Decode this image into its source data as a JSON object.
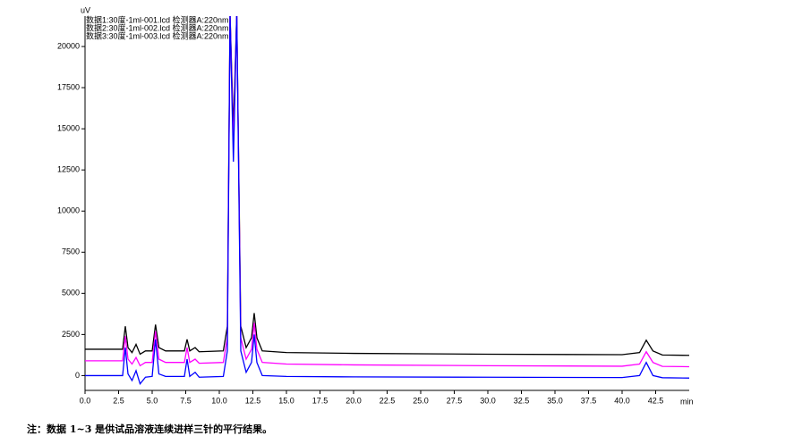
{
  "chart_data": {
    "type": "line",
    "y_label": "uV",
    "x_label": "min",
    "note": "注：数据 1~3 是供试品溶液连续进样三针的平行结果。",
    "x": [
      0,
      2.8,
      3.0,
      3.2,
      3.5,
      3.8,
      4.1,
      4.5,
      5.0,
      5.25,
      5.5,
      6.0,
      7.4,
      7.6,
      7.8,
      8.2,
      8.5,
      10.3,
      10.6,
      10.8,
      11.05,
      11.3,
      11.6,
      12.0,
      12.4,
      12.6,
      12.8,
      13.2,
      15,
      20,
      30,
      40,
      41.3,
      41.8,
      42.3,
      43,
      45
    ],
    "series": [
      {
        "name": "数据1:30度-1ml-001.lcd 检测器A:220nm",
        "color": "#000000",
        "values": [
          1600,
          1600,
          3000,
          1700,
          1400,
          1900,
          1300,
          1500,
          1500,
          3100,
          1700,
          1500,
          1500,
          2200,
          1500,
          1700,
          1450,
          1500,
          3000,
          22000,
          15000,
          22000,
          3000,
          1700,
          2300,
          3800,
          2300,
          1500,
          1400,
          1350,
          1300,
          1270,
          1400,
          2150,
          1500,
          1250,
          1230
        ]
      },
      {
        "name": "数据2:30度-1ml-002.lcd 检测器A:220nm",
        "color": "#ff00ff",
        "values": [
          900,
          900,
          2400,
          1000,
          700,
          1100,
          600,
          800,
          800,
          2700,
          1000,
          800,
          800,
          1700,
          800,
          1000,
          750,
          800,
          2300,
          22000,
          14000,
          22000,
          2300,
          1000,
          1600,
          3200,
          1600,
          800,
          700,
          650,
          600,
          570,
          700,
          1450,
          800,
          560,
          540
        ]
      },
      {
        "name": "数据3:30度-1ml-003.lcd 检测器A:220nm",
        "color": "#0000ff",
        "values": [
          0,
          0,
          1700,
          100,
          -300,
          300,
          -500,
          -100,
          -50,
          2200,
          100,
          -50,
          -50,
          1000,
          -50,
          200,
          -100,
          -50,
          1500,
          22000,
          13000,
          22000,
          1500,
          200,
          800,
          2500,
          800,
          0,
          -50,
          -80,
          -100,
          -120,
          0,
          800,
          0,
          -130,
          -150
        ]
      }
    ],
    "xlim": [
      0,
      45
    ],
    "ylim": [
      -900,
      21850
    ],
    "xticks": [
      {
        "value": 0,
        "label": "0.0"
      },
      {
        "value": 2.5,
        "label": "2.5"
      },
      {
        "value": 5,
        "label": "5.0"
      },
      {
        "value": 7.5,
        "label": "7.5"
      },
      {
        "value": 10,
        "label": "10.0"
      },
      {
        "value": 12.5,
        "label": "12.5"
      },
      {
        "value": 15,
        "label": "15.0"
      },
      {
        "value": 17.5,
        "label": "17.5"
      },
      {
        "value": 20,
        "label": "20.0"
      },
      {
        "value": 22.5,
        "label": "22.5"
      },
      {
        "value": 25,
        "label": "25.0"
      },
      {
        "value": 27.5,
        "label": "27.5"
      },
      {
        "value": 30,
        "label": "30.0"
      },
      {
        "value": 32.5,
        "label": "32.5"
      },
      {
        "value": 35,
        "label": "35.0"
      },
      {
        "value": 37.5,
        "label": "37.5"
      },
      {
        "value": 40,
        "label": "40.0"
      },
      {
        "value": 42.5,
        "label": "42.5"
      }
    ],
    "yticks": [
      0,
      2500,
      5000,
      7500,
      10000,
      12500,
      15000,
      17500,
      20000
    ]
  }
}
